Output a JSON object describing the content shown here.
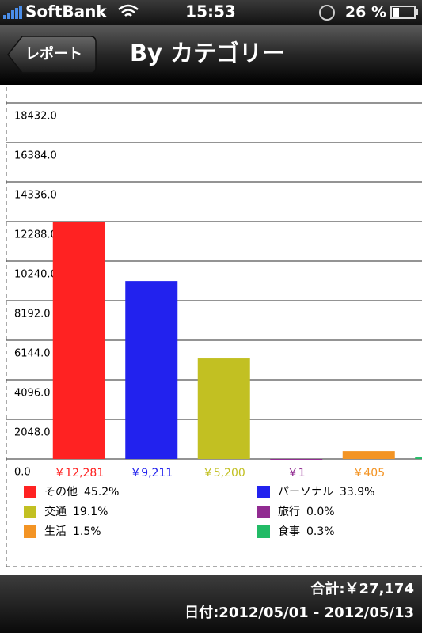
{
  "status_bar": {
    "carrier": "SoftBank",
    "time": "15:53",
    "battery": "26 %"
  },
  "nav": {
    "back": "レポート",
    "title": "By カテゴリー"
  },
  "chart_data": {
    "type": "bar",
    "categories": [
      "その他",
      "パーソナル",
      "交通",
      "旅行",
      "生活",
      "食事"
    ],
    "values": [
      12281,
      9211,
      5200,
      1,
      405,
      80
    ],
    "value_labels": [
      "￥12,281",
      "￥9,211",
      "￥5,200",
      "￥1",
      "￥405",
      null
    ],
    "shares": [
      "45.2%",
      "33.9%",
      "19.1%",
      "0.0%",
      "1.5%",
      "0.3%"
    ],
    "colors": [
      "#ff2222",
      "#2222ee",
      "#c2c022",
      "#912b91",
      "#f39424",
      "#22bb66"
    ],
    "ylim": [
      0,
      18432
    ],
    "yticks": [
      {
        "value": 0,
        "label": "0.0"
      },
      {
        "value": 2048,
        "label": "2048.0"
      },
      {
        "value": 4096,
        "label": "4096.0"
      },
      {
        "value": 6144,
        "label": "6144.0"
      },
      {
        "value": 8192,
        "label": "8192.0"
      },
      {
        "value": 10240,
        "label": "10240.0"
      },
      {
        "value": 12288,
        "label": "12288.0"
      },
      {
        "value": 14336,
        "label": "14336.0"
      },
      {
        "value": 16384,
        "label": "16384.0"
      },
      {
        "value": 18432,
        "label": "18432.0"
      }
    ],
    "grid": true
  },
  "footer": {
    "total": "合計:￥27,174",
    "dates": "日付:2012/05/01 - 2012/05/13"
  }
}
